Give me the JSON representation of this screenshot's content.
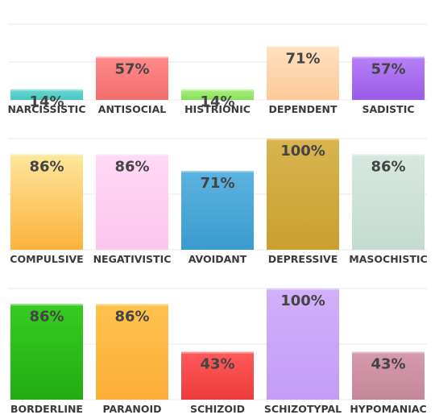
{
  "chart_data": {
    "type": "bar",
    "ylim": [
      0,
      100
    ],
    "grid": true,
    "panels": [
      {
        "categories": [
          "NARCISSISTIC",
          "ANTISOCIAL",
          "HISTRIONIC",
          "DEPENDENT",
          "SADISTIC"
        ],
        "values": [
          14,
          57,
          14,
          71,
          57
        ],
        "labels": [
          "14%",
          "57%",
          "14%",
          "71%",
          "57%"
        ],
        "colors": [
          [
            "#66d9d2",
            "#48c7c0"
          ],
          [
            "#ff8a8a",
            "#f26d6d"
          ],
          [
            "#a8f27a",
            "#86e05a"
          ],
          [
            "#ffe1bf",
            "#fdc99a"
          ],
          [
            "#b780f7",
            "#9a5be8"
          ]
        ]
      },
      {
        "categories": [
          "COMPULSIVE",
          "NEGATIVISTIC",
          "AVOIDANT",
          "DEPRESSIVE",
          "MASOCHISTIC"
        ],
        "values": [
          86,
          86,
          71,
          100,
          86
        ],
        "labels": [
          "86%",
          "86%",
          "71%",
          "100%",
          "86%"
        ],
        "colors": [
          [
            "#fde79b",
            "#fdb13e"
          ],
          [
            "#ffd9f5",
            "#fbc5ee"
          ],
          [
            "#5cb3e0",
            "#3b9bcf"
          ],
          [
            "#d9b450",
            "#c9a02f"
          ],
          [
            "#d6e8df",
            "#c4dbd0"
          ]
        ]
      },
      {
        "categories": [
          "BORDERLINE",
          "PARANOID",
          "SCHIZOID",
          "SCHIZOTYPAL",
          "HYPOMANIAC"
        ],
        "values": [
          86,
          86,
          43,
          100,
          43
        ],
        "labels": [
          "86%",
          "86%",
          "43%",
          "100%",
          "43%"
        ],
        "colors": [
          [
            "#36cc22",
            "#22ad12"
          ],
          [
            "#ffc24d",
            "#fbae37"
          ],
          [
            "#ff5a5a",
            "#ee3b3b"
          ],
          [
            "#d2b0fb",
            "#c49cf6"
          ],
          [
            "#d59aab",
            "#c4879a"
          ]
        ]
      }
    ]
  }
}
